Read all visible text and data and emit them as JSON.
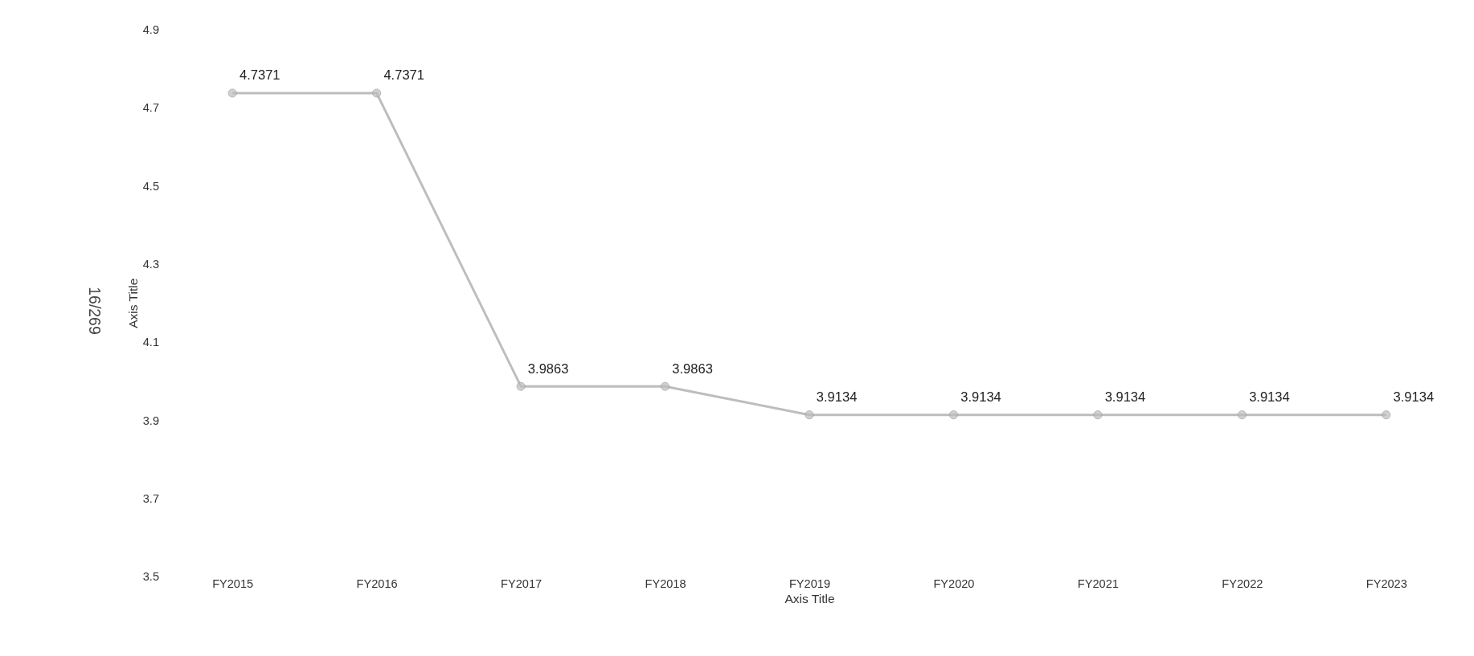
{
  "chart_data": {
    "type": "line",
    "xlabel": "Axis Title",
    "ylabel": "Axis Title",
    "categories": [
      "FY2015",
      "FY2016",
      "FY2017",
      "FY2018",
      "FY2019",
      "FY2020",
      "FY2021",
      "FY2022",
      "FY2023"
    ],
    "series": [
      {
        "color": "#bdbdbd",
        "values": [
          4.7371,
          4.7371,
          3.9863,
          3.9863,
          3.9134,
          3.9134,
          3.9134,
          3.9134,
          3.9134
        ]
      }
    ],
    "ylim": [
      3.5,
      4.9
    ],
    "yticks": [
      3.5,
      3.7,
      3.9,
      4.1,
      4.3,
      4.5,
      4.7,
      4.9
    ],
    "marker": "circle",
    "line_style": "solid",
    "data_labels": true,
    "annotations": [
      "16/269"
    ]
  }
}
